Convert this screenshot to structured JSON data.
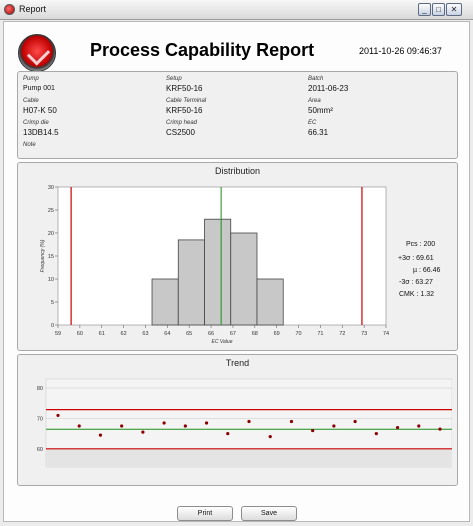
{
  "window": {
    "title": "Report",
    "min": "_",
    "max": "□",
    "close": "✕"
  },
  "header": {
    "title": "Process Capability Report",
    "timestamp": "2011-10-26 09:46:37"
  },
  "info": {
    "pump_label": "Pump",
    "pump": "Pump 001",
    "setup_label": "Setup",
    "setup": "KRF50-16",
    "batch_label": "Batch",
    "batch": "2011-06-23",
    "cable_label": "Cable",
    "cable": "H07-K 50",
    "cable_terminal_label": "Cable Terminal",
    "cable_terminal": "KRF50-16",
    "area_label": "Area",
    "area": "50mm²",
    "crimp_die_label": "Crimp die",
    "crimp_die": "13DB14.5",
    "crimp_head_label": "Crimp head",
    "crimp_head": "CS2500",
    "ec_label": "EC",
    "ec": "66.31",
    "note_label": "Note"
  },
  "distribution": {
    "title": "Distribution",
    "stats": {
      "pcs": "Pcs : 200",
      "plus3s": "+3σ : 69.61",
      "mu": "µ : 66.46",
      "minus3s": "-3σ : 63.27",
      "cmk": "CMK : 1.32"
    }
  },
  "trend": {
    "title": "Trend"
  },
  "buttons": {
    "print": "Print",
    "save": "Save"
  },
  "colors": {
    "limit": "#cc0000",
    "mean": "#1a8f1a",
    "bar": "#c8c8c8",
    "point": "#8b0000"
  },
  "chart_data": [
    {
      "type": "bar",
      "title": "Distribution",
      "xlabel": "EC Value",
      "ylabel": "Frequency (%)",
      "xlim": [
        59,
        74
      ],
      "ylim": [
        0,
        30
      ],
      "x_ticks": [
        59,
        60,
        61,
        62,
        63,
        64,
        65,
        66,
        67,
        68,
        69,
        70,
        71,
        72,
        73,
        74
      ],
      "y_ticks": [
        0,
        5,
        10,
        15,
        20,
        25,
        30
      ],
      "bins": [
        {
          "from": 63.3,
          "to": 64.5,
          "value": 10
        },
        {
          "from": 64.5,
          "to": 65.7,
          "value": 18.5
        },
        {
          "from": 65.7,
          "to": 66.9,
          "value": 23
        },
        {
          "from": 66.9,
          "to": 68.1,
          "value": 20
        },
        {
          "from": 68.1,
          "to": 69.3,
          "value": 10
        }
      ],
      "lines": {
        "lower_limit": 59.6,
        "upper_limit": 72.9,
        "mean": 66.46
      },
      "grid": false
    },
    {
      "type": "line",
      "title": "Trend",
      "ylim": [
        54,
        83
      ],
      "y_ticks": [
        60,
        70,
        80
      ],
      "y": [
        71,
        67.5,
        64.5,
        67.5,
        65.5,
        68.5,
        67.5,
        68.5,
        65,
        69,
        64,
        69,
        66,
        67.5,
        69,
        65,
        67,
        67.5,
        66.5
      ],
      "lines": {
        "upper_limit": 72.9,
        "lower_limit": 60,
        "mean": 66.46
      },
      "grid": true
    }
  ]
}
